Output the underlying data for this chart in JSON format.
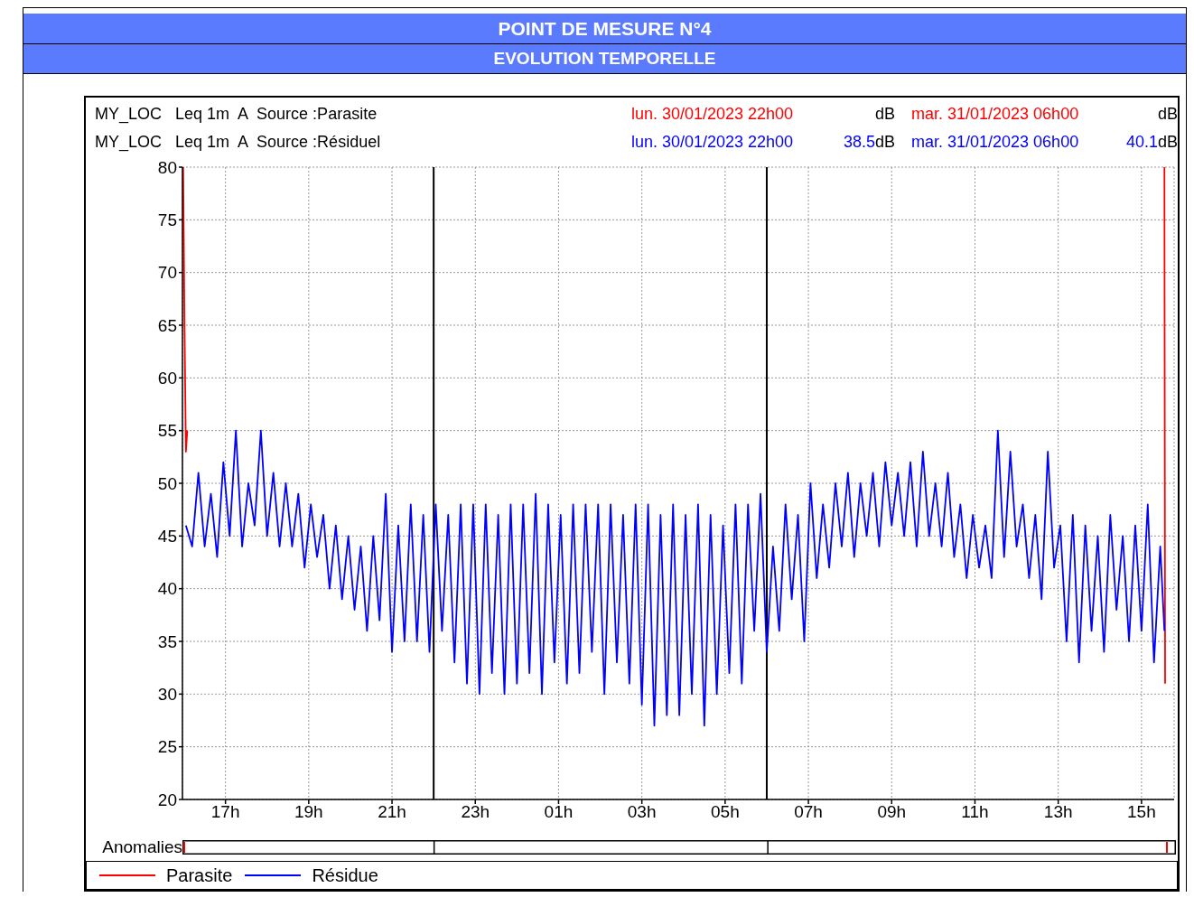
{
  "chart_data": {
    "type": "line",
    "title": "POINT DE MESURE N°4",
    "subtitle": "EVOLUTION TEMPORELLE",
    "annotations": [
      "MY_LOC   Leq 1m  A  Source :Parasite",
      "lun. 30/01/2023 22h00",
      "dB",
      "mar. 31/01/2023 06h00",
      "dB",
      "MY_LOC   Leq 1m  A  Source :Résiduel",
      "lun. 30/01/2023 22h00",
      "38.5dB",
      "mar. 31/01/2023 06h00",
      "40.1dB",
      "Anomalies"
    ],
    "series": [
      {
        "name": "Parasite",
        "color": "#ff0000",
        "x": [
          "2023-01-30T15:59",
          "2023-01-30T16:01",
          "2023-01-30T16:03",
          "2023-01-30T16:05",
          "2023-01-30T20:00",
          "2023-01-31T15:33",
          "2023-01-31T15:34"
        ],
        "values": [
          80,
          65,
          53,
          55,
          null,
          80,
          31
        ]
      },
      {
        "name": "Résidue",
        "color": "#0000ff",
        "x": [
          "2023-01-30T16:03",
          "2023-01-30T16:12",
          "2023-01-30T16:21",
          "2023-01-30T16:30",
          "2023-01-30T16:39",
          "2023-01-30T16:48",
          "2023-01-30T16:57",
          "2023-01-30T17:06",
          "2023-01-30T17:15",
          "2023-01-30T17:24",
          "2023-01-30T17:33",
          "2023-01-30T17:42",
          "2023-01-30T17:51",
          "2023-01-30T18:00",
          "2023-01-30T18:09",
          "2023-01-30T18:18",
          "2023-01-30T18:27",
          "2023-01-30T18:36",
          "2023-01-30T18:45",
          "2023-01-30T18:54",
          "2023-01-30T19:03",
          "2023-01-30T19:12",
          "2023-01-30T19:21",
          "2023-01-30T19:30",
          "2023-01-30T19:39",
          "2023-01-30T19:48",
          "2023-01-30T19:57",
          "2023-01-30T20:06",
          "2023-01-30T20:15",
          "2023-01-30T20:24",
          "2023-01-30T20:33",
          "2023-01-30T20:42",
          "2023-01-30T20:51",
          "2023-01-30T21:00",
          "2023-01-30T21:09",
          "2023-01-30T21:18",
          "2023-01-30T21:27",
          "2023-01-30T21:36",
          "2023-01-30T21:45",
          "2023-01-30T21:54",
          "2023-01-30T22:03",
          "2023-01-30T22:12",
          "2023-01-30T22:21",
          "2023-01-30T22:30",
          "2023-01-30T22:39",
          "2023-01-30T22:48",
          "2023-01-30T22:57",
          "2023-01-30T23:06",
          "2023-01-30T23:15",
          "2023-01-30T23:24",
          "2023-01-30T23:33",
          "2023-01-30T23:42",
          "2023-01-30T23:51",
          "2023-01-31T00:00",
          "2023-01-31T00:09",
          "2023-01-31T00:18",
          "2023-01-31T00:27",
          "2023-01-31T00:36",
          "2023-01-31T00:45",
          "2023-01-31T00:54",
          "2023-01-31T01:03",
          "2023-01-31T01:12",
          "2023-01-31T01:21",
          "2023-01-31T01:30",
          "2023-01-31T01:39",
          "2023-01-31T01:48",
          "2023-01-31T01:57",
          "2023-01-31T02:06",
          "2023-01-31T02:15",
          "2023-01-31T02:24",
          "2023-01-31T02:33",
          "2023-01-31T02:42",
          "2023-01-31T02:51",
          "2023-01-31T03:00",
          "2023-01-31T03:09",
          "2023-01-31T03:18",
          "2023-01-31T03:27",
          "2023-01-31T03:36",
          "2023-01-31T03:45",
          "2023-01-31T03:54",
          "2023-01-31T04:03",
          "2023-01-31T04:12",
          "2023-01-31T04:21",
          "2023-01-31T04:30",
          "2023-01-31T04:39",
          "2023-01-31T04:48",
          "2023-01-31T04:57",
          "2023-01-31T05:06",
          "2023-01-31T05:15",
          "2023-01-31T05:24",
          "2023-01-31T05:33",
          "2023-01-31T05:42",
          "2023-01-31T05:51",
          "2023-01-31T06:00",
          "2023-01-31T06:09",
          "2023-01-31T06:18",
          "2023-01-31T06:27",
          "2023-01-31T06:36",
          "2023-01-31T06:45",
          "2023-01-31T06:54",
          "2023-01-31T07:03",
          "2023-01-31T07:12",
          "2023-01-31T07:21",
          "2023-01-31T07:30",
          "2023-01-31T07:39",
          "2023-01-31T07:48",
          "2023-01-31T07:57",
          "2023-01-31T08:06",
          "2023-01-31T08:15",
          "2023-01-31T08:24",
          "2023-01-31T08:33",
          "2023-01-31T08:42",
          "2023-01-31T08:51",
          "2023-01-31T09:00",
          "2023-01-31T09:09",
          "2023-01-31T09:18",
          "2023-01-31T09:27",
          "2023-01-31T09:36",
          "2023-01-31T09:45",
          "2023-01-31T09:54",
          "2023-01-31T10:03",
          "2023-01-31T10:12",
          "2023-01-31T10:21",
          "2023-01-31T10:30",
          "2023-01-31T10:39",
          "2023-01-31T10:48",
          "2023-01-31T10:57",
          "2023-01-31T11:06",
          "2023-01-31T11:15",
          "2023-01-31T11:24",
          "2023-01-31T11:33",
          "2023-01-31T11:42",
          "2023-01-31T11:51",
          "2023-01-31T12:00",
          "2023-01-31T12:09",
          "2023-01-31T12:18",
          "2023-01-31T12:27",
          "2023-01-31T12:36",
          "2023-01-31T12:45",
          "2023-01-31T12:54",
          "2023-01-31T13:03",
          "2023-01-31T13:12",
          "2023-01-31T13:21",
          "2023-01-31T13:30",
          "2023-01-31T13:39",
          "2023-01-31T13:48",
          "2023-01-31T13:57",
          "2023-01-31T14:06",
          "2023-01-31T14:15",
          "2023-01-31T14:24",
          "2023-01-31T14:33",
          "2023-01-31T14:42",
          "2023-01-31T14:51",
          "2023-01-31T15:00",
          "2023-01-31T15:09",
          "2023-01-31T15:18",
          "2023-01-31T15:27",
          "2023-01-31T15:33"
        ],
        "values": [
          46,
          44,
          51,
          44,
          49,
          43,
          52,
          45,
          55,
          44,
          50,
          46,
          55,
          45,
          51,
          44,
          50,
          44,
          49,
          42,
          48,
          43,
          47,
          40,
          46,
          39,
          45,
          38,
          44,
          36,
          45,
          37,
          49,
          34,
          46,
          35,
          48,
          35,
          47,
          34,
          48,
          36,
          47,
          33,
          48,
          31,
          48,
          30,
          48,
          32,
          47,
          30,
          48,
          31,
          48,
          32,
          49,
          30,
          48,
          33,
          47,
          31,
          48,
          32,
          48,
          34,
          48,
          30,
          48,
          33,
          47,
          31,
          48,
          29,
          48,
          27,
          47,
          28,
          48,
          28,
          47,
          30,
          48,
          27,
          47,
          30,
          46,
          32,
          48,
          31,
          48,
          36,
          49,
          34,
          44,
          36,
          48,
          39,
          47,
          35,
          50,
          41,
          48,
          42,
          50,
          44,
          51,
          43,
          50,
          45,
          51,
          44,
          52,
          46,
          51,
          45,
          52,
          44,
          53,
          45,
          50,
          44,
          51,
          43,
          48,
          41,
          47,
          42,
          46,
          41,
          55,
          43,
          53,
          44,
          48,
          41,
          47,
          39,
          53,
          42,
          46,
          35,
          47,
          33,
          46,
          36,
          45,
          34,
          47,
          38,
          45,
          35,
          46,
          36,
          48,
          33,
          44,
          36
        ]
      }
    ],
    "xlim": [
      "2023-01-30T15:58",
      "2023-01-31T15:47"
    ],
    "xticks": [
      {
        "value": "2023-01-30T17:00",
        "label": "17h"
      },
      {
        "value": "2023-01-30T19:00",
        "label": "19h"
      },
      {
        "value": "2023-01-30T21:00",
        "label": "21h"
      },
      {
        "value": "2023-01-30T23:00",
        "label": "23h"
      },
      {
        "value": "2023-01-31T01:00",
        "label": "01h"
      },
      {
        "value": "2023-01-31T03:00",
        "label": "03h"
      },
      {
        "value": "2023-01-31T05:00",
        "label": "05h"
      },
      {
        "value": "2023-01-31T07:00",
        "label": "07h"
      },
      {
        "value": "2023-01-31T09:00",
        "label": "09h"
      },
      {
        "value": "2023-01-31T11:00",
        "label": "11h"
      },
      {
        "value": "2023-01-31T13:00",
        "label": "13h"
      },
      {
        "value": "2023-01-31T15:00",
        "label": "15h"
      }
    ],
    "ylim": [
      20,
      80
    ],
    "yticks": [
      20,
      25,
      30,
      35,
      40,
      45,
      50,
      55,
      60,
      65,
      70,
      75,
      80
    ],
    "ref_lines": [
      {
        "axis": "x",
        "value": "2023-01-30T22:00",
        "color": "#000000"
      },
      {
        "axis": "x",
        "value": "2023-01-31T06:00",
        "color": "#000000"
      }
    ],
    "grid": true,
    "legend": "bottom",
    "marker": "none",
    "line_style": "solid"
  }
}
